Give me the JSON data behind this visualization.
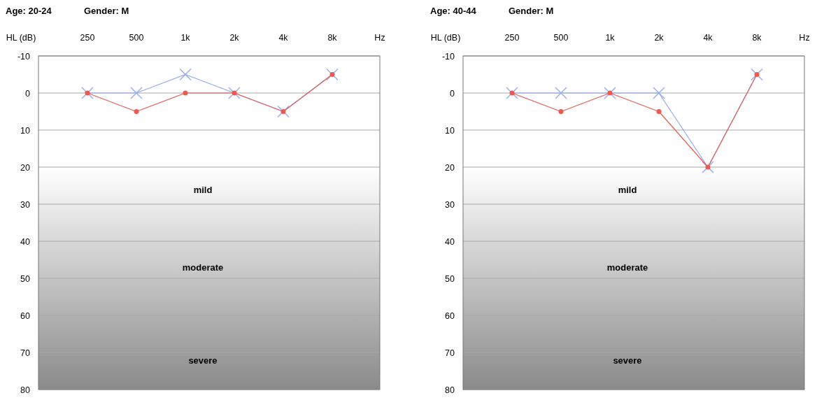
{
  "chart_data": [
    {
      "type": "line",
      "title": "Age: 20-24",
      "subtitle": "Gender: M",
      "xlabel": "Hz",
      "ylabel": "HL (dB)",
      "categories": [
        "250",
        "500",
        "1k",
        "2k",
        "4k",
        "8k"
      ],
      "series": [
        {
          "color": "#8fa9f2",
          "marker": "cross",
          "values": [
            0,
            0,
            -5,
            0,
            5,
            -5
          ]
        },
        {
          "color": "#ea5a50",
          "marker": "circle",
          "values": [
            0,
            5,
            0,
            0,
            5,
            -5
          ]
        }
      ],
      "ylim": [
        80,
        -10
      ],
      "yticks": [
        -10,
        0,
        10,
        20,
        30,
        40,
        50,
        60,
        70,
        80
      ],
      "grid": "y",
      "bands": [
        {
          "axis": "y",
          "from": 20,
          "to": 80,
          "color": "#8a8a8a"
        }
      ],
      "annotations": [
        "mild",
        "moderate",
        "severe"
      ]
    },
    {
      "type": "line",
      "title": "Age: 40-44",
      "subtitle": "Gender: M",
      "xlabel": "Hz",
      "ylabel": "HL (dB)",
      "categories": [
        "250",
        "500",
        "1k",
        "2k",
        "4k",
        "8k"
      ],
      "series": [
        {
          "color": "#8fa9f2",
          "marker": "cross",
          "values": [
            0,
            0,
            0,
            0,
            20,
            -5
          ]
        },
        {
          "color": "#ea5a50",
          "marker": "circle",
          "values": [
            0,
            5,
            0,
            5,
            20,
            -5
          ]
        }
      ],
      "ylim": [
        80,
        -10
      ],
      "yticks": [
        -10,
        0,
        10,
        20,
        30,
        40,
        50,
        60,
        70,
        80
      ],
      "grid": "y",
      "bands": [
        {
          "axis": "y",
          "from": 20,
          "to": 80,
          "color": "#8a8a8a"
        }
      ],
      "annotations": [
        "mild",
        "moderate",
        "severe"
      ]
    }
  ]
}
